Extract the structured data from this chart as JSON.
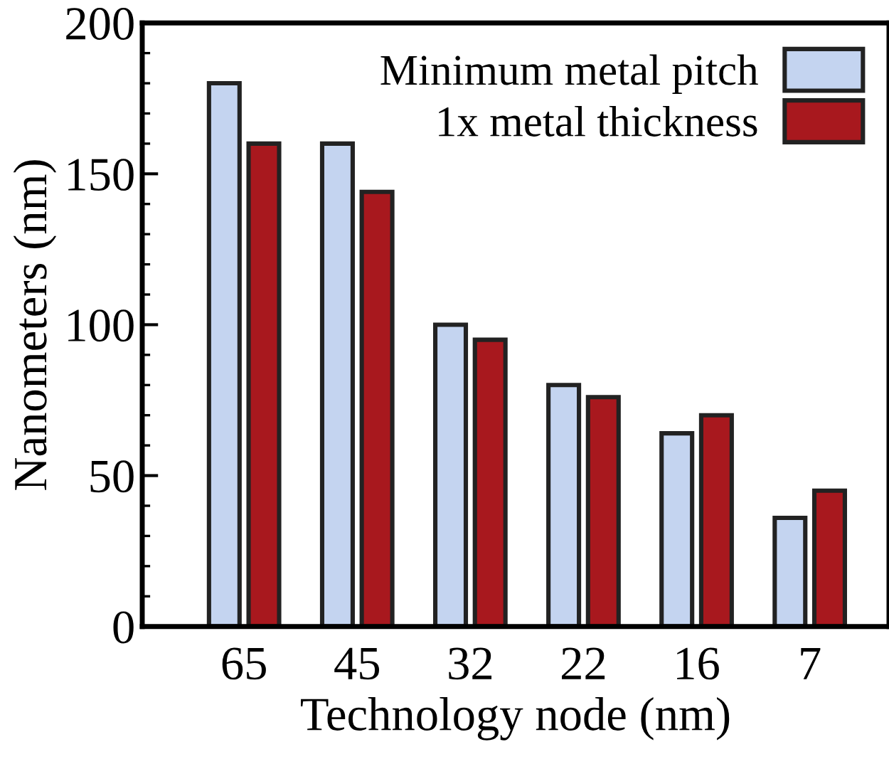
{
  "chart_data": {
    "type": "bar",
    "xlabel": "Technology node (nm)",
    "ylabel": "Nanometers (nm)",
    "categories": [
      "65",
      "45",
      "32",
      "22",
      "16",
      "7"
    ],
    "series": [
      {
        "name": "Minimum metal pitch",
        "color": "#c4d4f0",
        "values": [
          180,
          160,
          100,
          80,
          64,
          36
        ]
      },
      {
        "name": "1x metal thickness",
        "color": "#a8181e",
        "values": [
          160,
          144,
          95,
          76,
          70,
          45
        ]
      }
    ],
    "ylim": [
      0,
      200
    ],
    "yticks": [
      0,
      50,
      100,
      150,
      200
    ],
    "grid": false,
    "legend": "top right"
  }
}
